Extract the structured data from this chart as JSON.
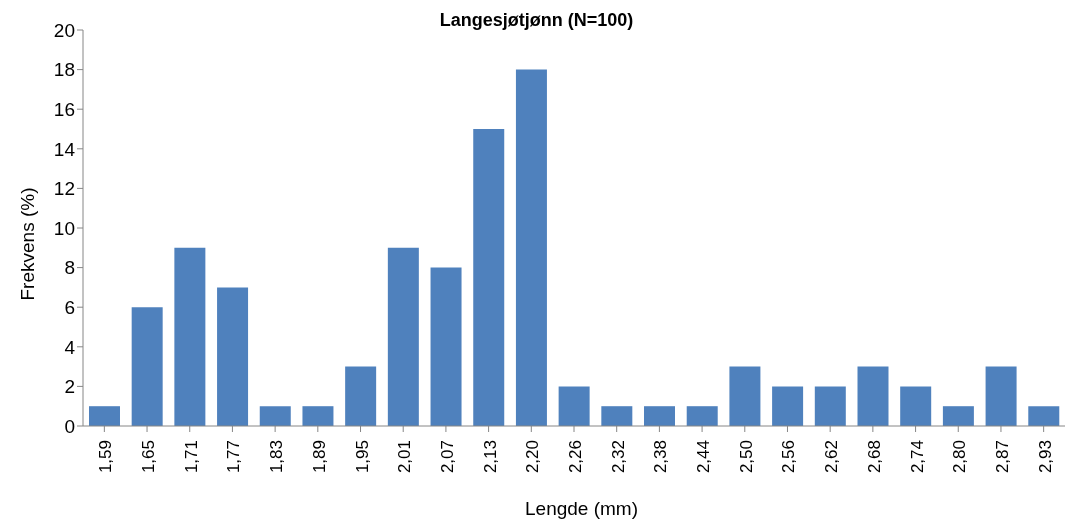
{
  "chart_data": {
    "type": "bar",
    "title": "Langesjøtjønn (N=100)",
    "xlabel": "Lengde (mm)",
    "ylabel": "Frekvens (%)",
    "categories": [
      "1,59",
      "1,65",
      "1,71",
      "1,77",
      "1,83",
      "1,89",
      "1,95",
      "2,01",
      "2,07",
      "2,13",
      "2,20",
      "2,26",
      "2,32",
      "2,38",
      "2,44",
      "2,50",
      "2,56",
      "2,62",
      "2,68",
      "2,74",
      "2,80",
      "2,87",
      "2,93"
    ],
    "values": [
      1,
      6,
      9,
      7,
      1,
      1,
      3,
      9,
      8,
      15,
      18,
      2,
      1,
      1,
      1,
      3,
      2,
      2,
      3,
      2,
      1,
      3,
      1
    ],
    "color": "#4f81bd",
    "ylim": [
      0,
      20
    ],
    "yticks": [
      0,
      2,
      4,
      6,
      8,
      10,
      12,
      14,
      16,
      18,
      20
    ],
    "grid": false,
    "legend": false
  }
}
